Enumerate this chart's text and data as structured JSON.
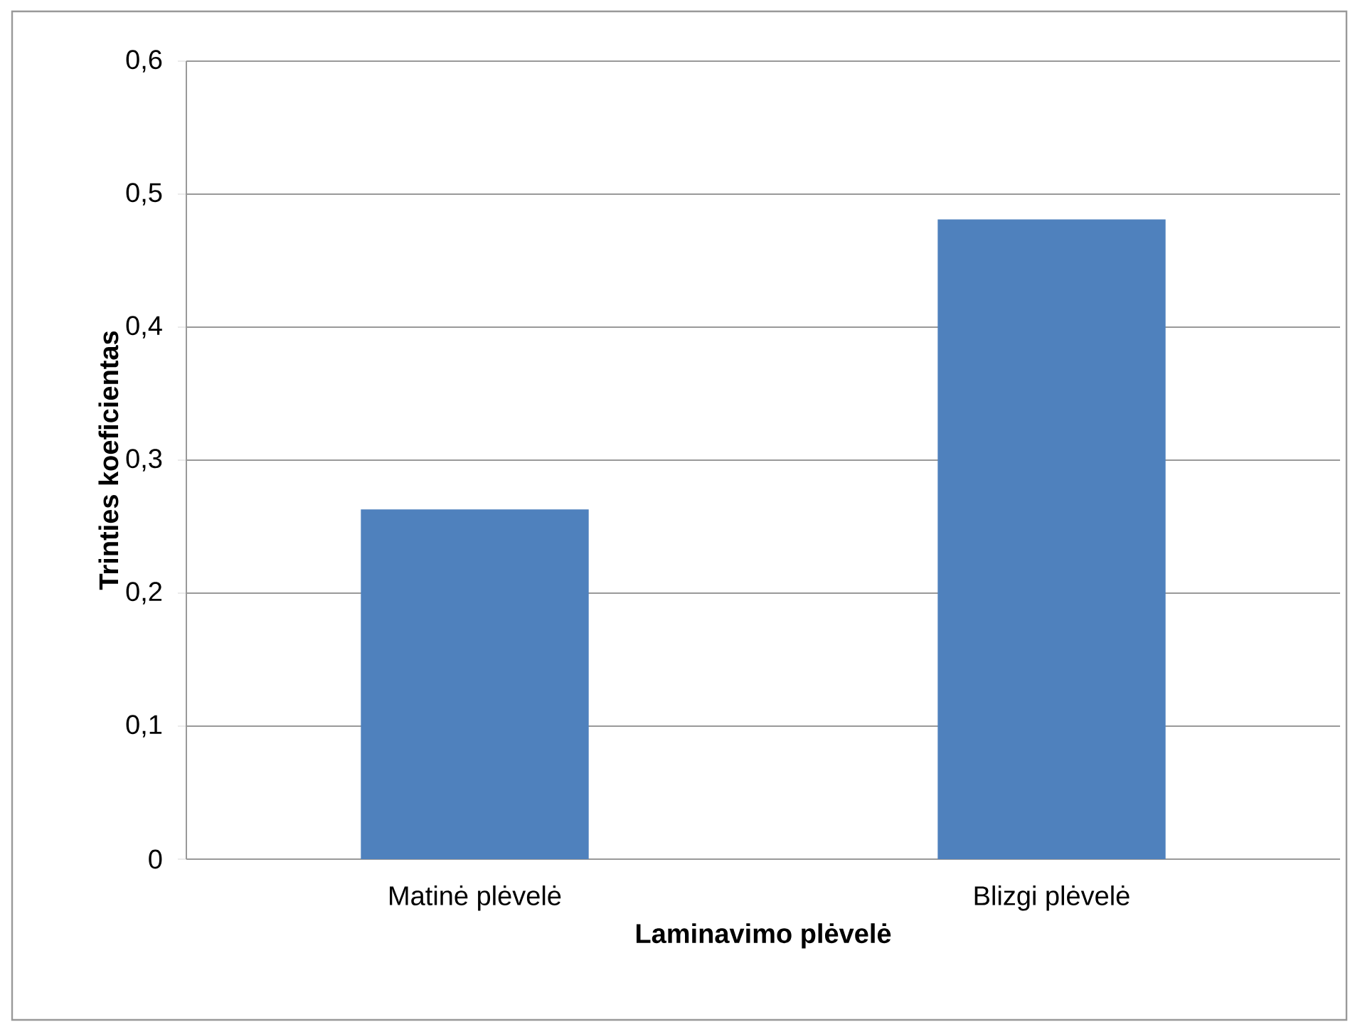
{
  "chart_data": {
    "type": "bar",
    "categories": [
      "Matinė plėvelė",
      "Blizgi plėvelė"
    ],
    "values": [
      0.263,
      0.481
    ],
    "color": "#4f81bd",
    "xlabel": "Laminavimo plėvelė",
    "ylabel": "Trinties koeficientas",
    "ylim": [
      0,
      0.6
    ],
    "yticks": [
      0,
      {
        "value": 0.1,
        "label": "0,1"
      },
      {
        "value": 0.2,
        "label": "0,2"
      },
      {
        "value": 0.3,
        "label": "0,3"
      },
      {
        "value": 0.4,
        "label": "0,4"
      },
      {
        "value": 0.5,
        "label": "0,5"
      },
      {
        "value": 0.6,
        "label": "0,6"
      }
    ],
    "grid": "y"
  }
}
